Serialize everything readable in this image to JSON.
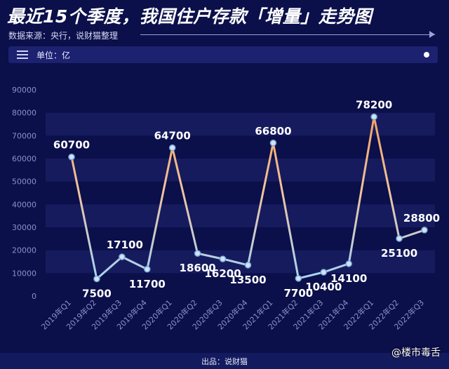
{
  "header": {
    "title": "最近15个季度，我国住户存款「增量」走势图",
    "source": "数据来源：央行，说财猫整理"
  },
  "unit_bar": {
    "label": "单位：亿"
  },
  "footer": {
    "label": "出品：说财猫"
  },
  "watermark": {
    "label": "@楼市毒舌"
  },
  "colors": {
    "background": "#0b0f4a",
    "band": "#161b5e",
    "line_high": "#f2a15e",
    "line_low": "#a9d3f2",
    "marker": "#cfe4f7"
  },
  "chart_data": {
    "type": "line",
    "categories": [
      "2019年Q1",
      "2019年Q2",
      "2019年Q3",
      "2019年Q4",
      "2020年Q1",
      "2020年Q2",
      "2020年Q3",
      "2020年Q4",
      "2021年Q1",
      "2021年Q2",
      "2021年Q3",
      "2021年Q4",
      "2022年Q1",
      "2022年Q2",
      "2022年Q3"
    ],
    "values": [
      60700,
      7500,
      17100,
      11700,
      64700,
      18600,
      16200,
      13500,
      66800,
      7700,
      10400,
      14100,
      78200,
      25100,
      28800
    ],
    "ylim": [
      0,
      90000
    ],
    "yticks": [
      0,
      10000,
      20000,
      30000,
      40000,
      50000,
      60000,
      70000,
      80000,
      90000
    ],
    "title": "",
    "xlabel": "",
    "ylabel": "",
    "grid": "alternating horizontal bands"
  }
}
